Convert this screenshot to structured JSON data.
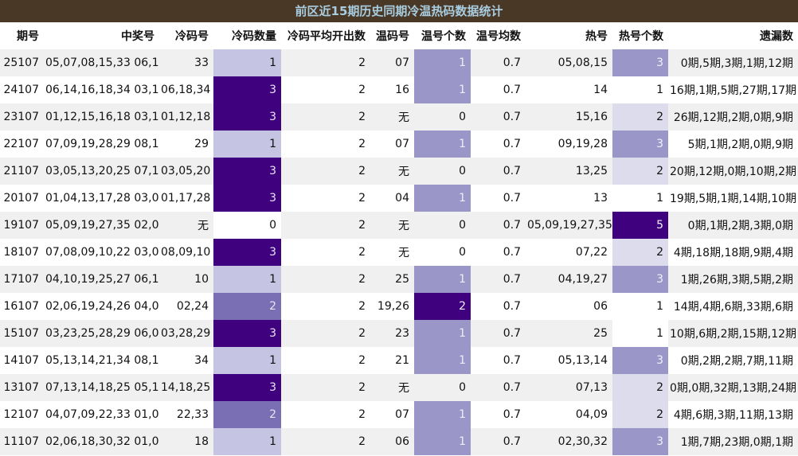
{
  "title": "前区近15期历史同期冷温热码数据统计",
  "headers": [
    "期号",
    "中奖号",
    "冷码号",
    "冷码数量",
    "冷码平均开出数",
    "温码号",
    "温号个数",
    "温号均数",
    "热号",
    "热号个数",
    "遗漏数"
  ],
  "rows": [
    [
      "25107",
      "05,07,08,15,33 06,10",
      "33",
      "1",
      "2",
      "07",
      "1",
      "0.7",
      "05,08,15",
      "3",
      "0期,5期,3期,1期,12期"
    ],
    [
      "24107",
      "06,14,16,18,34 03,10",
      "06,18,34",
      "3",
      "2",
      "16",
      "1",
      "0.7",
      "14",
      "1",
      "16期,1期,5期,27期,17期"
    ],
    [
      "23107",
      "01,12,15,16,18 03,10",
      "01,12,18",
      "3",
      "2",
      "无",
      "0",
      "0.7",
      "15,16",
      "2",
      "26期,12期,2期,0期,9期"
    ],
    [
      "22107",
      "07,09,19,28,29 08,10",
      "29",
      "1",
      "2",
      "07",
      "1",
      "0.7",
      "09,19,28",
      "3",
      "5期,1期,2期,0期,9期"
    ],
    [
      "21107",
      "03,05,13,20,25 07,11",
      "03,05,20",
      "3",
      "2",
      "无",
      "0",
      "0.7",
      "13,25",
      "2",
      "20期,12期,0期,10期,2期"
    ],
    [
      "20107",
      "01,04,13,17,28 03,07",
      "01,17,28",
      "3",
      "2",
      "04",
      "1",
      "0.7",
      "13",
      "1",
      "19期,5期,1期,14期,10期"
    ],
    [
      "19107",
      "05,09,19,27,35 02,03",
      "无",
      "0",
      "2",
      "无",
      "0",
      "0.7",
      "05,09,19,27,35",
      "5",
      "0期,1期,2期,3期,0期"
    ],
    [
      "18107",
      "07,08,09,10,22 03,04",
      "08,09,10",
      "3",
      "2",
      "无",
      "0",
      "0.7",
      "07,22",
      "2",
      "4期,18期,18期,9期,4期"
    ],
    [
      "17107",
      "04,10,19,25,27 06,12",
      "10",
      "1",
      "2",
      "25",
      "1",
      "0.7",
      "04,19,27",
      "3",
      "1期,26期,3期,5期,2期"
    ],
    [
      "16107",
      "02,06,19,24,26 04,06",
      "02,24",
      "2",
      "2",
      "19,26",
      "2",
      "0.7",
      "06",
      "1",
      "14期,4期,6期,33期,6期"
    ],
    [
      "15107",
      "03,23,25,28,29 06,07",
      "03,28,29",
      "3",
      "2",
      "23",
      "1",
      "0.7",
      "25",
      "1",
      "10期,6期,2期,15期,12期"
    ],
    [
      "14107",
      "05,13,14,21,34 08,10",
      "34",
      "1",
      "2",
      "21",
      "1",
      "0.7",
      "05,13,14",
      "3",
      "0期,2期,2期,7期,11期"
    ],
    [
      "13107",
      "07,13,14,18,25 05,12",
      "14,18,25",
      "3",
      "2",
      "无",
      "0",
      "0.7",
      "07,13",
      "2",
      "0期,0期,32期,13期,24期"
    ],
    [
      "12107",
      "04,07,09,22,33 01,03",
      "22,33",
      "2",
      "2",
      "07",
      "1",
      "0.7",
      "04,09",
      "2",
      "4期,6期,3期,11期,13期"
    ],
    [
      "11107",
      "02,06,18,30,32 01,08",
      "18",
      "1",
      "2",
      "06",
      "1",
      "0.7",
      "02,30,32",
      "3",
      "1期,7期,23期,0期,1期"
    ]
  ]
}
